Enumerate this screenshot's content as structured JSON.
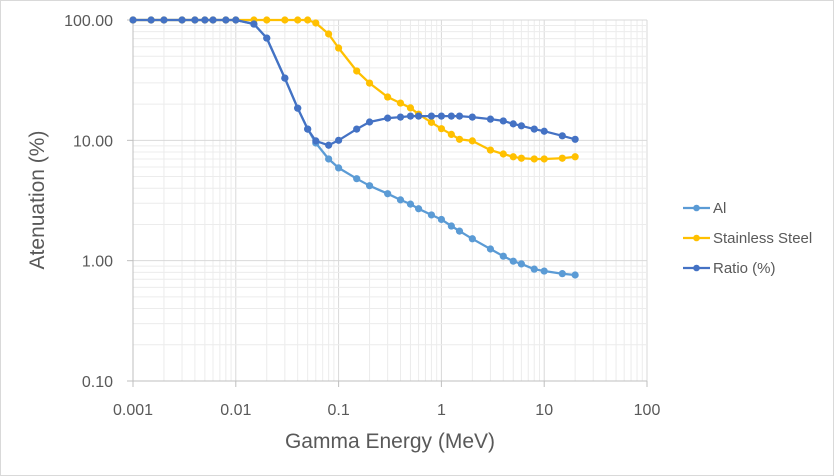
{
  "chart_data": {
    "type": "line",
    "title": "",
    "xlabel": "Gamma Energy (MeV)",
    "ylabel": "Atenuation (%)",
    "xscale": "log",
    "yscale": "log",
    "xlim": [
      0.001,
      100
    ],
    "ylim": [
      0.1,
      100
    ],
    "x_ticks": [
      0.001,
      0.01,
      0.1,
      1,
      10,
      100
    ],
    "x_tick_labels": [
      "0.001",
      "0.01",
      "0.1",
      "1",
      "10",
      "100"
    ],
    "y_ticks": [
      0.1,
      1,
      10,
      100
    ],
    "y_tick_labels": [
      "0.10",
      "1.00",
      "10.00",
      "100.00"
    ],
    "grid": true,
    "legend_position": "right",
    "x": [
      0.001,
      0.0015,
      0.002,
      0.003,
      0.004,
      0.005,
      0.006,
      0.008,
      0.01,
      0.015,
      0.02,
      0.03,
      0.04,
      0.05,
      0.06,
      0.08,
      0.1,
      0.15,
      0.2,
      0.3,
      0.4,
      0.5,
      0.6,
      0.8,
      1,
      1.25,
      1.5,
      2,
      3,
      4,
      5,
      6,
      8,
      10,
      15,
      20
    ],
    "series": [
      {
        "name": "Al",
        "color": "#5B9BD5",
        "values": [
          100,
          100,
          100,
          100,
          100,
          100,
          100,
          100,
          100,
          92.6,
          70.8,
          32.9,
          18.5,
          12.4,
          9.5,
          7.0,
          5.9,
          4.8,
          4.2,
          3.6,
          3.2,
          2.95,
          2.7,
          2.4,
          2.2,
          1.94,
          1.76,
          1.52,
          1.25,
          1.09,
          0.99,
          0.94,
          0.85,
          0.82,
          0.78,
          0.76
        ]
      },
      {
        "name": "Stainless Steel",
        "color": "#FFC000",
        "values": [
          100,
          100,
          100,
          100,
          100,
          100,
          100,
          100,
          100,
          100,
          100,
          100,
          100,
          100,
          94.4,
          76.5,
          58.5,
          37.7,
          29.9,
          22.9,
          20.4,
          18.6,
          16.5,
          14.1,
          12.5,
          11.2,
          10.2,
          9.9,
          8.3,
          7.7,
          7.3,
          7.1,
          7.0,
          7.0,
          7.1,
          7.3
        ]
      },
      {
        "name": "Ratio (%)",
        "color": "#4472C4",
        "values": [
          100,
          100,
          100,
          100,
          100,
          100,
          100,
          100,
          100,
          92.6,
          70.8,
          32.9,
          18.5,
          12.4,
          9.9,
          9.1,
          10.0,
          12.4,
          14.2,
          15.3,
          15.6,
          15.9,
          15.9,
          15.9,
          15.9,
          15.9,
          15.9,
          15.6,
          15.0,
          14.5,
          13.7,
          13.2,
          12.4,
          11.9,
          10.9,
          10.2
        ]
      }
    ]
  }
}
